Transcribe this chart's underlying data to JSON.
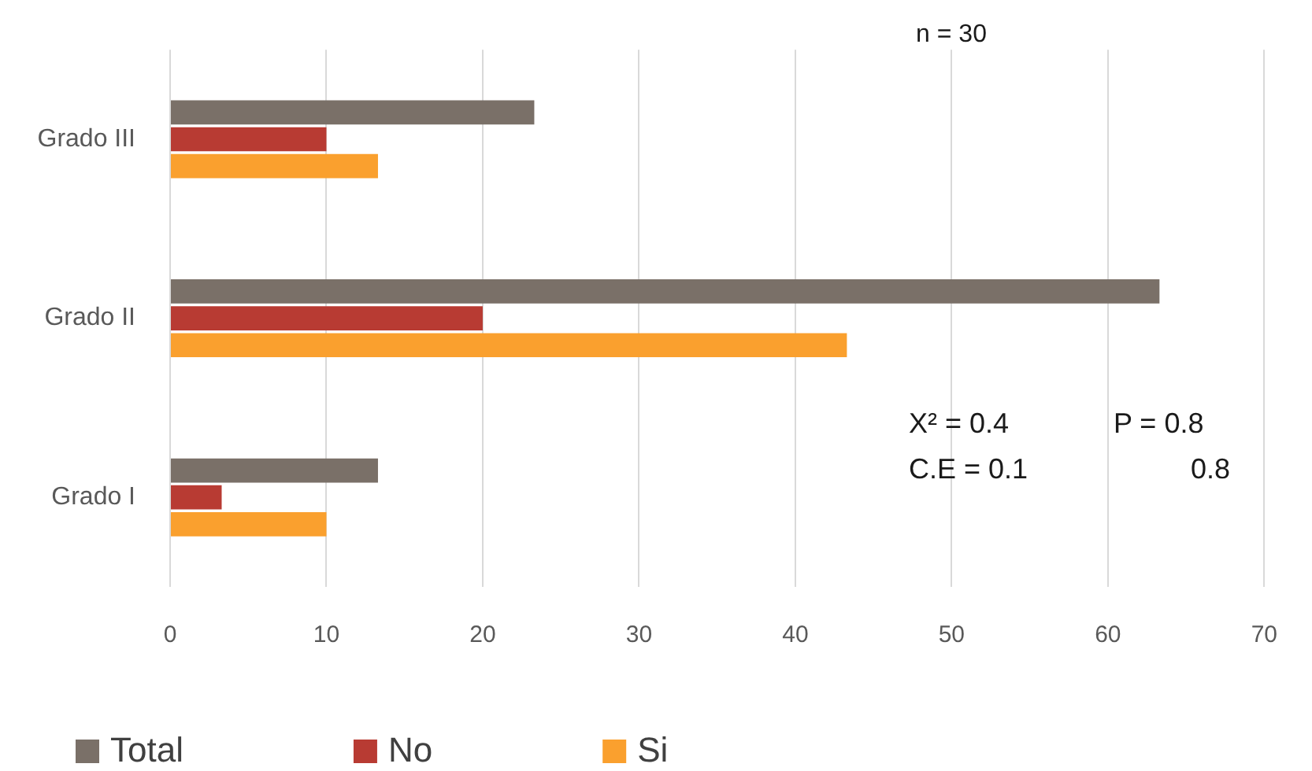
{
  "chart_data": {
    "type": "bar",
    "orientation": "horizontal",
    "categories": [
      "Grado III",
      "Grado II",
      "Grado I"
    ],
    "series": [
      {
        "name": "Total",
        "color": "#7a7068",
        "values": [
          23.3,
          63.3,
          13.3
        ]
      },
      {
        "name": "No",
        "color": "#b83b33",
        "values": [
          10,
          20,
          3.3
        ]
      },
      {
        "name": "Si",
        "color": "#faa02e",
        "values": [
          13.3,
          43.3,
          10
        ]
      }
    ],
    "xlim": [
      0,
      70
    ],
    "xticks": [
      0,
      10,
      20,
      30,
      40,
      50,
      60,
      70
    ],
    "grid": "x",
    "legend": "bottom left",
    "annotations": [
      "n = 30",
      "X² = 0.4",
      "P = 0.8",
      "C.E = 0.1",
      "0.8"
    ]
  }
}
